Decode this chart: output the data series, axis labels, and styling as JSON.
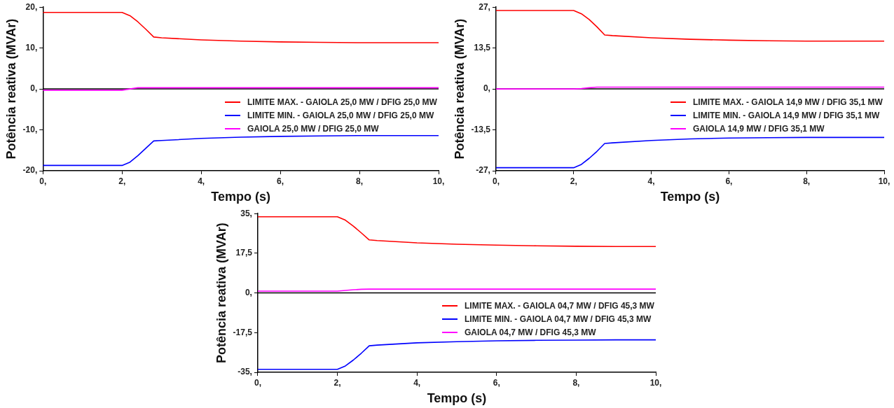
{
  "chart_data": [
    {
      "type": "line",
      "xlabel": "Tempo (s)",
      "ylabel": "Potência reativa (MVAr)",
      "legend": "right",
      "x": [
        0,
        2,
        2.2,
        2.4,
        2.6,
        2.8,
        3,
        4,
        5,
        6,
        7,
        8,
        9,
        10
      ],
      "xlim": [
        0,
        10
      ],
      "xticks": [
        {
          "value": 0,
          "label": "0,"
        },
        {
          "value": 2,
          "label": "2,"
        },
        {
          "value": 4,
          "label": "4,"
        },
        {
          "value": 6,
          "label": "6,"
        },
        {
          "value": 8,
          "label": "8,"
        },
        {
          "value": 10,
          "label": "10,"
        }
      ],
      "ylim": [
        -20,
        20
      ],
      "yticks": [
        {
          "value": -20,
          "label": "-20,"
        },
        {
          "value": -10,
          "label": "-10,"
        },
        {
          "value": 0,
          "label": "0,"
        },
        {
          "value": 10,
          "label": "10,"
        },
        {
          "value": 20,
          "label": "20,"
        }
      ],
      "ref_lines": [
        {
          "axis": "y",
          "value": 0,
          "color": "#000000"
        }
      ],
      "series": [
        {
          "name": "LIMITE MAX. - GAIOLA 25,0 MW / DFIG 25,0 MW",
          "color": "#ff0000",
          "values": [
            18.7,
            18.7,
            17.9,
            16.4,
            14.6,
            12.7,
            12.5,
            12.0,
            11.7,
            11.5,
            11.4,
            11.3,
            11.3,
            11.3
          ]
        },
        {
          "name": "LIMITE MIN. - GAIOLA 25,0 MW / DFIG 25,0 MW",
          "color": "#0000ff",
          "values": [
            -18.7,
            -18.7,
            -17.9,
            -16.3,
            -14.5,
            -12.7,
            -12.6,
            -12.1,
            -11.8,
            -11.6,
            -11.5,
            -11.4,
            -11.4,
            -11.4
          ]
        },
        {
          "name": "GAIOLA 25,0 MW / DFIG 25,0 MW",
          "color": "#ff00ff",
          "values": [
            -0.3,
            -0.3,
            0.0,
            0.3,
            0.3,
            0.3,
            0.3,
            0.3,
            0.3,
            0.3,
            0.3,
            0.3,
            0.3,
            0.3
          ]
        }
      ]
    },
    {
      "type": "line",
      "xlabel": "Tempo (s)",
      "ylabel": "Potência reativa (MVAr)",
      "legend": "right",
      "x": [
        0,
        2,
        2.2,
        2.4,
        2.6,
        2.8,
        3,
        4,
        5,
        6,
        7,
        8,
        9,
        10
      ],
      "xlim": [
        0,
        10
      ],
      "xticks": [
        {
          "value": 0,
          "label": "0,"
        },
        {
          "value": 2,
          "label": "2,"
        },
        {
          "value": 4,
          "label": "4,"
        },
        {
          "value": 6,
          "label": "6,"
        },
        {
          "value": 8,
          "label": "8,"
        },
        {
          "value": 10,
          "label": "10,"
        }
      ],
      "ylim": [
        -27,
        27
      ],
      "yticks": [
        {
          "value": -27,
          "label": "-27,"
        },
        {
          "value": -13.5,
          "label": "-13,5"
        },
        {
          "value": 0,
          "label": "0,"
        },
        {
          "value": 13.5,
          "label": "13,5"
        },
        {
          "value": 27,
          "label": "27,"
        }
      ],
      "ref_lines": [
        {
          "axis": "y",
          "value": 0,
          "color": "#000000"
        }
      ],
      "series": [
        {
          "name": "LIMITE MAX. - GAIOLA 14,9 MW / DFIG 35,1 MW",
          "color": "#ff0000",
          "values": [
            25.9,
            25.9,
            24.8,
            22.9,
            20.5,
            17.8,
            17.6,
            16.9,
            16.4,
            16.1,
            15.9,
            15.8,
            15.8,
            15.8
          ]
        },
        {
          "name": "LIMITE MIN. - GAIOLA 14,9 MW / DFIG 35,1 MW",
          "color": "#0000ff",
          "values": [
            -26.0,
            -26.0,
            -24.9,
            -22.9,
            -20.6,
            -18.0,
            -17.8,
            -17.0,
            -16.5,
            -16.2,
            -16.1,
            -16.0,
            -16.0,
            -16.0
          ]
        },
        {
          "name": "GAIOLA 14,9 MW / DFIG 35,1 MW",
          "color": "#ff00ff",
          "values": [
            0,
            0,
            0.1,
            0.4,
            0.6,
            0.6,
            0.6,
            0.6,
            0.6,
            0.6,
            0.6,
            0.6,
            0.6,
            0.6
          ]
        }
      ]
    },
    {
      "type": "line",
      "xlabel": "Tempo (s)",
      "ylabel": "Potência reativa (MVAr)",
      "legend": "right",
      "x": [
        0,
        2,
        2.2,
        2.4,
        2.6,
        2.8,
        3,
        4,
        5,
        6,
        7,
        8,
        9,
        10
      ],
      "xlim": [
        0,
        10
      ],
      "xticks": [
        {
          "value": 0,
          "label": "0,"
        },
        {
          "value": 2,
          "label": "2,"
        },
        {
          "value": 4,
          "label": "4,"
        },
        {
          "value": 6,
          "label": "6,"
        },
        {
          "value": 8,
          "label": "8,"
        },
        {
          "value": 10,
          "label": "10,"
        }
      ],
      "ylim": [
        -35,
        35
      ],
      "yticks": [
        {
          "value": -35,
          "label": "-35,"
        },
        {
          "value": -17.5,
          "label": "-17,5"
        },
        {
          "value": 0,
          "label": "0,"
        },
        {
          "value": 17.5,
          "label": "17,5"
        },
        {
          "value": 35,
          "label": "35,"
        }
      ],
      "ref_lines": [
        {
          "axis": "y",
          "value": 0,
          "color": "#000000"
        }
      ],
      "series": [
        {
          "name": "LIMITE MAX. - GAIOLA 04,7 MW / DFIG 45,3 MW",
          "color": "#ff0000",
          "values": [
            33.6,
            33.6,
            32.1,
            29.5,
            26.5,
            23.4,
            23.1,
            22.1,
            21.5,
            21.1,
            20.8,
            20.6,
            20.5,
            20.5
          ]
        },
        {
          "name": "LIMITE MIN. - GAIOLA 04,7 MW / DFIG 45,3 MW",
          "color": "#0000ff",
          "values": [
            -33.7,
            -33.7,
            -32.2,
            -29.6,
            -26.6,
            -23.3,
            -23.0,
            -22.0,
            -21.5,
            -21.1,
            -20.9,
            -20.8,
            -20.7,
            -20.7
          ]
        },
        {
          "name": "GAIOLA 04,7 MW / DFIG 45,3 MW",
          "color": "#ff00ff",
          "values": [
            0.8,
            0.8,
            1.1,
            1.4,
            1.6,
            1.7,
            1.7,
            1.7,
            1.7,
            1.7,
            1.7,
            1.7,
            1.7,
            1.7
          ]
        }
      ]
    }
  ]
}
